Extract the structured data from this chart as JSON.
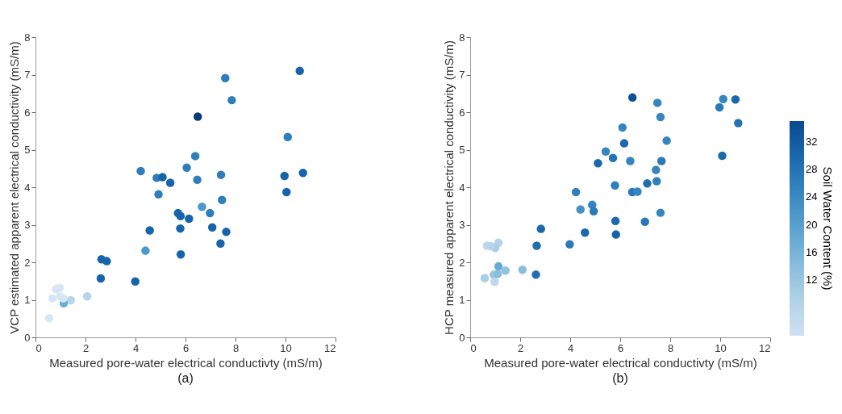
{
  "chart_data": [
    {
      "type": "scatter",
      "title": "(a)",
      "xlabel": "Measured pore-water electrical conductivty (mS/m)",
      "ylabel": "VCP estimated apparent electrical conductivity (mS/m)",
      "xlim": [
        0,
        12
      ],
      "xticks": [
        0,
        2,
        4,
        6,
        8,
        10,
        12
      ],
      "ylim": [
        0,
        8
      ],
      "yticks": [
        0,
        1,
        2,
        3,
        4,
        5,
        6,
        7,
        8
      ],
      "grid": false,
      "marker": "circle",
      "x": [
        7.59,
        10.57,
        7.85,
        6.49,
        10.09,
        6.39,
        6.05,
        4.21,
        4.85,
        5.08,
        5.39,
        6.47,
        7.42,
        9.96,
        10.7,
        4.92,
        10.04,
        7.46,
        6.66,
        5.7,
        5.8,
        6.98,
        6.14,
        4.57,
        5.79,
        7.07,
        7.63,
        7.4,
        4.4,
        5.81,
        2.64,
        2.85,
        2.61,
        3.99,
        2.07,
        1.41,
        1.13,
        0.98,
        0.68,
        1.11,
        0.83,
        0.97,
        0.55
      ],
      "values": [
        6.91,
        7.1,
        6.32,
        5.88,
        5.34,
        4.83,
        4.52,
        4.43,
        4.25,
        4.27,
        4.12,
        4.2,
        4.33,
        4.3,
        4.38,
        3.81,
        3.87,
        3.66,
        3.48,
        3.31,
        3.23,
        3.31,
        3.16,
        2.85,
        2.9,
        2.93,
        2.81,
        2.5,
        2.31,
        2.21,
        2.08,
        2.03,
        1.57,
        1.49,
        1.09,
        0.99,
        0.91,
        1.09,
        1.04,
        1.04,
        1.29,
        1.32,
        0.51
      ],
      "colors": [
        "#2f7ebc",
        "#1764ab",
        "#2f7ebc",
        "#0a3a78",
        "#2f7ebc",
        "#2f7ebc",
        "#2f7ebc",
        "#2f7ebc",
        "#2f7ebc",
        "#1764ab",
        "#1764ab",
        "#2f7ebc",
        "#2f7ebc",
        "#1764ab",
        "#1764ab",
        "#2f7ebc",
        "#1764ab",
        "#2f7ebc",
        "#4b98ca",
        "#1764ab",
        "#1764ab",
        "#2f7ebc",
        "#1764ab",
        "#1764ab",
        "#1764ab",
        "#1764ab",
        "#1764ab",
        "#1764ab",
        "#4b98ca",
        "#1764ab",
        "#1764ab",
        "#1764ab",
        "#1764ab",
        "#1764ab",
        "#b6d4ea",
        "#b6d4ea",
        "#6aaed6",
        "#d6e6f4",
        "#d6e6f4",
        "#d6e6f4",
        "#d6e6f4",
        "#d6e6f4",
        "#d6e6f4"
      ]
    },
    {
      "type": "scatter",
      "title": "(b)",
      "xlabel": "Measured pore-water electrical conductivty (mS/m)",
      "ylabel": "HCP measured apparent electrical conductivity (mS/m)",
      "xlim": [
        0,
        12
      ],
      "xticks": [
        0,
        2,
        4,
        6,
        8,
        10,
        12
      ],
      "ylim": [
        0,
        8
      ],
      "yticks": [
        0,
        1,
        2,
        3,
        4,
        5,
        6,
        7,
        8
      ],
      "grid": false,
      "marker": "circle",
      "clim": [
        4,
        35
      ],
      "cticks": [
        12,
        16,
        20,
        24,
        28,
        32
      ],
      "clabel": "Soil Water Content (%)",
      "x": [
        6.49,
        7.49,
        10.12,
        10.61,
        9.97,
        7.61,
        10.72,
        6.09,
        7.86,
        6.16,
        5.42,
        5.71,
        6.4,
        7.65,
        5.11,
        10.08,
        7.43,
        5.79,
        7.08,
        7.46,
        4.23,
        6.48,
        6.69,
        4.88,
        4.41,
        4.94,
        7.61,
        5.81,
        6.99,
        2.83,
        4.59,
        5.83,
        3.98,
        2.66,
        1.13,
        0.67,
        1.0,
        0.83,
        1.13,
        1.41,
        2.09,
        2.63,
        0.94,
        1.1,
        0.58,
        0.98
      ],
      "values": [
        6.39,
        6.25,
        6.35,
        6.34,
        6.13,
        5.87,
        5.71,
        5.59,
        5.24,
        5.17,
        4.95,
        4.78,
        4.7,
        4.7,
        4.64,
        4.84,
        4.46,
        4.05,
        4.1,
        4.16,
        3.87,
        3.87,
        3.88,
        3.53,
        3.41,
        3.36,
        3.32,
        3.1,
        3.08,
        2.89,
        2.79,
        2.74,
        2.48,
        2.44,
        2.52,
        2.44,
        2.38,
        2.43,
        1.89,
        1.78,
        1.8,
        1.67,
        1.67,
        1.69,
        1.58,
        1.48
      ],
      "cvalues": [
        34,
        25,
        25,
        30,
        27,
        25,
        28,
        25,
        25,
        30,
        25,
        28,
        25,
        27,
        30,
        30,
        25,
        26,
        29,
        26,
        26,
        27,
        25,
        25,
        23,
        27,
        25,
        30,
        27,
        30,
        30,
        31,
        27,
        29,
        9,
        7,
        10,
        8,
        18,
        13,
        14,
        29,
        12,
        14,
        10,
        7
      ]
    }
  ]
}
